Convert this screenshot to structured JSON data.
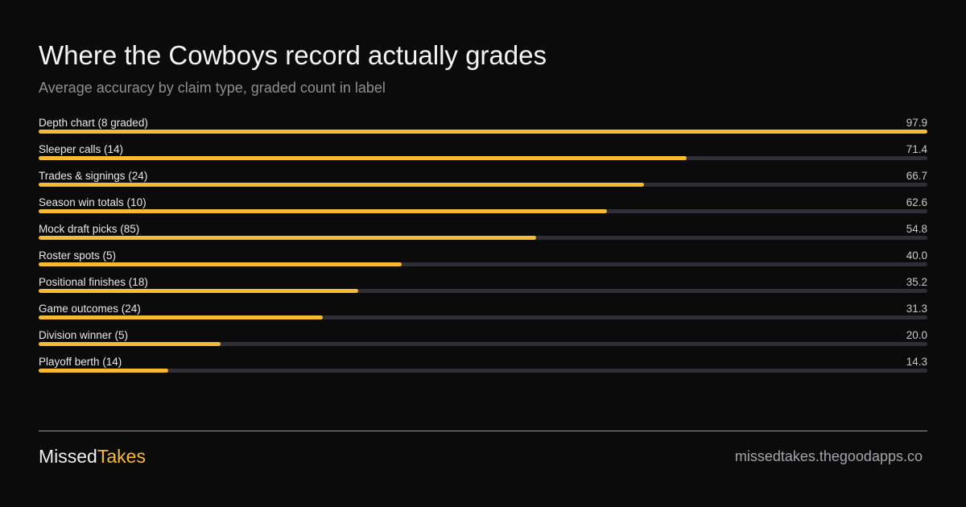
{
  "chart_data": {
    "type": "progress-bar",
    "title": "Where the Cowboys record actually grades",
    "subtitle": "Average accuracy by claim type, graded count in label",
    "categories": [
      "Depth chart (8 graded)",
      "Sleeper calls (14)",
      "Trades & signings (24)",
      "Season win totals (10)",
      "Mock draft picks (85)",
      "Roster spots (5)",
      "Positional finishes (18)",
      "Game outcomes (24)",
      "Division winner (5)",
      "Playoff berth (14)"
    ],
    "values": [
      97.9,
      71.4,
      66.7,
      62.6,
      54.8,
      40.0,
      35.2,
      31.3,
      20.0,
      14.3
    ],
    "value_labels": [
      "97.9",
      "71.4",
      "66.7",
      "62.6",
      "54.8",
      "40.0",
      "35.2",
      "31.3",
      "20.0",
      "14.3"
    ],
    "color": "#f7bb2f",
    "track_color": "#2e2e34"
  },
  "footer": {
    "brand_first": "Missed",
    "brand_second": "Takes",
    "url": "missedtakes.thegoodapps.co"
  }
}
